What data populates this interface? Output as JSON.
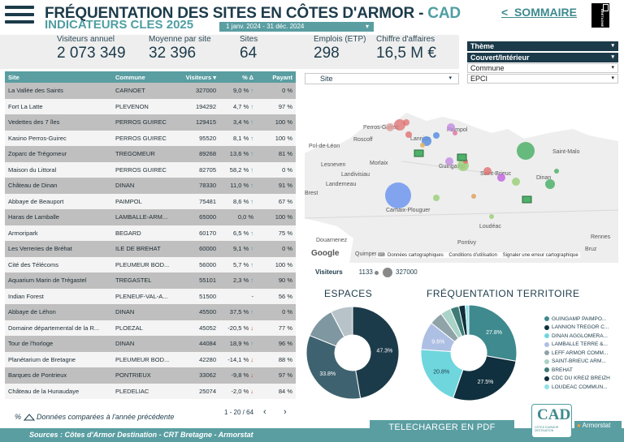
{
  "header": {
    "title_main": "FRÉQUENTATION DES SITES EN CÔTES D'ARMOR - ",
    "title_accent": "CAD",
    "subtitle": "INDICATEURS CLES 2025",
    "date_range": "1 janv. 2024 - 31 déc. 2024",
    "sommaire_label": "SOMMAIRE",
    "sommaire_arrow": "<",
    "logo_text": "BRETAGNE"
  },
  "kpis": [
    {
      "label": "Visiteurs annuel",
      "value": "2 073 349"
    },
    {
      "label": "Moyenne par site",
      "value": "32 396"
    },
    {
      "label": "Sites",
      "value": "64"
    },
    {
      "label": "Emplois (ETP)",
      "value": "298"
    },
    {
      "label": "Chiffre d'affaires",
      "value": "16,5 M €"
    }
  ],
  "filters": {
    "theme": "Thème",
    "couvert": "Couvert/Intérieur",
    "commune": "Commune",
    "epci": "EPCI",
    "site": "Site"
  },
  "table": {
    "columns": [
      "Site",
      "Commune",
      "Visiteurs",
      "% Δ",
      "Payant"
    ],
    "sort_indicator": "▾",
    "rows": [
      {
        "site": "La Vallée des Saints",
        "commune": "CARNOET",
        "visiteurs": "327000",
        "delta": "9,0 %",
        "dir": "up",
        "payant": "0 %"
      },
      {
        "site": "Fort La Latte",
        "commune": "PLEVENON",
        "visiteurs": "194292",
        "delta": "4,7 %",
        "dir": "up",
        "payant": "97 %"
      },
      {
        "site": "Vedettes des 7 îles",
        "commune": "PERROS GUIREC",
        "visiteurs": "129415",
        "delta": "3,4 %",
        "dir": "up",
        "payant": "100 %"
      },
      {
        "site": "Kasino Perros-Guirec",
        "commune": "PERROS GUIREC",
        "visiteurs": "95520",
        "delta": "8,1 %",
        "dir": "up",
        "payant": "100 %"
      },
      {
        "site": "Zoparc de Trégomeur",
        "commune": "TREGOMEUR",
        "visiteurs": "89268",
        "delta": "13,6 %",
        "dir": "up",
        "payant": "81 %"
      },
      {
        "site": "Maison du Littoral",
        "commune": "PERROS GUIREC",
        "visiteurs": "82705",
        "delta": "58,2 %",
        "dir": "up",
        "payant": "0 %"
      },
      {
        "site": "Château de Dinan",
        "commune": "DINAN",
        "visiteurs": "78330",
        "delta": "11,0 %",
        "dir": "up",
        "payant": "91 %"
      },
      {
        "site": "Abbaye de Beauport",
        "commune": "PAIMPOL",
        "visiteurs": "75481",
        "delta": "8,6 %",
        "dir": "up",
        "payant": "67 %"
      },
      {
        "site": "Haras de Lamballe",
        "commune": "LAMBALLE-ARM...",
        "visiteurs": "65000",
        "delta": "0,0 %",
        "dir": "",
        "payant": "100 %"
      },
      {
        "site": "Armoripark",
        "commune": "BEGARD",
        "visiteurs": "60170",
        "delta": "6,5 %",
        "dir": "up",
        "payant": "75 %"
      },
      {
        "site": "Les Verreries de Bréhat",
        "commune": "ILE DE BREHAT",
        "visiteurs": "60000",
        "delta": "9,1 %",
        "dir": "up",
        "payant": "0 %"
      },
      {
        "site": "Cité des Télécoms",
        "commune": "PLEUMEUR BOD...",
        "visiteurs": "56000",
        "delta": "5,7 %",
        "dir": "up",
        "payant": "100 %"
      },
      {
        "site": "Aquarium Marin de Trégastel",
        "commune": "TREGASTEL",
        "visiteurs": "55101",
        "delta": "2,3 %",
        "dir": "up",
        "payant": "90 %"
      },
      {
        "site": "Indian Forest",
        "commune": "PLENEUF-VAL-A...",
        "visiteurs": "51500",
        "delta": "-",
        "dir": "",
        "payant": "56 %"
      },
      {
        "site": "Abbaye de Léhon",
        "commune": "DINAN",
        "visiteurs": "45500",
        "delta": "37,5 %",
        "dir": "up",
        "payant": "0 %"
      },
      {
        "site": "Domaine départemental de la R...",
        "commune": "PLOEZAL",
        "visiteurs": "45052",
        "delta": "-20,5 %",
        "dir": "down",
        "payant": "77 %"
      },
      {
        "site": "Tour de l'horloge",
        "commune": "DINAN",
        "visiteurs": "44084",
        "delta": "18,9 %",
        "dir": "up",
        "payant": "96 %"
      },
      {
        "site": "Planétarium de Bretagne",
        "commune": "PLEUMEUR BOD...",
        "visiteurs": "42280",
        "delta": "-14,1 %",
        "dir": "down",
        "payant": "88 %"
      },
      {
        "site": "Barques de Pontrieux",
        "commune": "PONTRIEUX",
        "visiteurs": "33062",
        "delta": "-9,8 %",
        "dir": "down",
        "payant": "97 %"
      },
      {
        "site": "Château de la Hunaudaye",
        "commune": "PLEDELIAC",
        "visiteurs": "25074",
        "delta": "-2,0 %",
        "dir": "down",
        "payant": "84 %"
      }
    ],
    "footnote": "Données comparées à l'année précédente",
    "footnote_prefix": "%",
    "pager": "1 - 20 / 64",
    "prev": "‹",
    "next": "›"
  },
  "map": {
    "places": [
      "Perros-Guirec",
      "Paimpol",
      "Lannion",
      "Roscoff",
      "Morlaix",
      "Guingamp",
      "Saint-Brieuc",
      "Saint-Malo",
      "Lesneven",
      "Landivisiau",
      "Landerneau",
      "Carhaix-Plouguer",
      "Loudéac",
      "Pontivy",
      "Rennes",
      "Douarnenez",
      "Quimper",
      "Dinan",
      "Brest",
      "Pol-de-Léon",
      "Bruz"
    ],
    "attribution_google": "Google",
    "attribution_1": "Données cartographiques",
    "attribution_2": "Conditions d'utilisation",
    "attribution_3": "Signaler une erreur cartographique",
    "legend_label": "Visiteurs",
    "legend_min": "1133",
    "legend_max": "327000"
  },
  "charts": {
    "espaces_title": "ESPACES",
    "territoire_title": "FRÉQUENTATION TERRITOIRE"
  },
  "chart_data": [
    {
      "type": "pie",
      "title": "ESPACES",
      "categories": [
        "",
        "",
        "",
        ""
      ],
      "values": [
        47.3,
        33.8,
        11.2,
        7.7
      ],
      "labels": [
        "47.3%",
        "33.8%",
        "",
        ""
      ],
      "colors": [
        "#1c3b4a",
        "#3e6270",
        "#7f97a1",
        "#b7c3c8"
      ]
    },
    {
      "type": "pie",
      "title": "FRÉQUENTATION TERRITOIRE",
      "categories": [
        "GUINGAMP PAIMPO...",
        "LANNION TREGOR C...",
        "DINAN AGGLOMERA...",
        "LAMBALLE TERRE &...",
        "LEFF ARMOR COMM...",
        "SAINT-BRIEUC ARM...",
        "BREHAT",
        "CDC DU KREIZ BREIZH",
        "LOUDEAC COMMUN..."
      ],
      "values": [
        27.8,
        27.5,
        20.8,
        9.6,
        4.5,
        3.5,
        2.9,
        2.2,
        1.2
      ],
      "labels": [
        "27.8%",
        "27.5%",
        "20.8%",
        "9.6%",
        "",
        "",
        "",
        "",
        ""
      ],
      "colors": [
        "#3e8a8e",
        "#10303f",
        "#6fd6dd",
        "#aebfe4",
        "#8fa3a8",
        "#a9d3c7",
        "#3e7b77",
        "#0f2f3d",
        "#8fe1e8"
      ]
    }
  ],
  "footer": {
    "sources": "Sources : Côtes d'Armor Destination  -  CRT Bretagne  -  Armorstat",
    "download": "TELECHARGER EN PDF",
    "logo": "CAD",
    "logo_sub": "CÔTES D'ARMOR DESTINATION",
    "armorstat": "Armorstat"
  }
}
